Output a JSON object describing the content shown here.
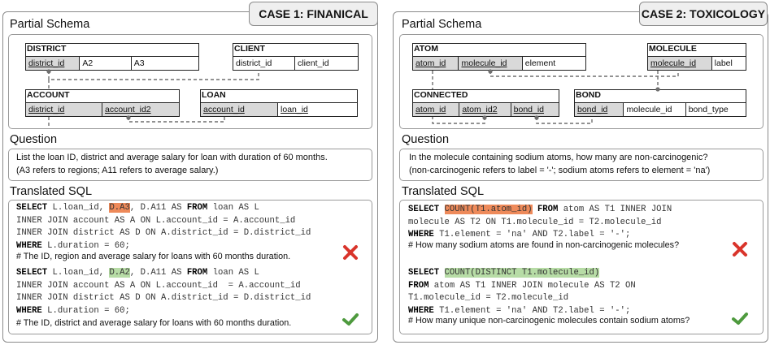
{
  "case1": {
    "tab": "CASE 1: FINANICAL",
    "schema_title": "Partial Schema",
    "tables": {
      "district": {
        "name": "DISTRICT",
        "cols": [
          "district_id",
          "A2",
          "A3"
        ]
      },
      "client": {
        "name": "CLIENT",
        "cols": [
          "district_id",
          "client_id"
        ]
      },
      "account": {
        "name": "ACCOUNT",
        "cols": [
          "district_id",
          "account_id2"
        ]
      },
      "loan": {
        "name": "LOAN",
        "cols": [
          "account_id",
          "loan_id"
        ]
      }
    },
    "question_title": "Question",
    "question_line1": "List the loan ID, district and average salary for loan with duration of 60 months.",
    "question_line2": "(A3 refers to regions; A11 refers to average salary.)",
    "sql_title": "Translated SQL",
    "sql_wrong": {
      "l1_kw": "SELECT",
      "l1_a": " L.loan_id, ",
      "l1_hl": "D.A3",
      "l1_b": ", D.A11 AS ",
      "l1_kw2": "FROM",
      "l1_c": " loan AS L",
      "l2": "INNER JOIN account AS A ON L.account_id = A.account_id",
      "l3": "INNER JOIN district AS D ON A.district_id = D.district_id",
      "l4_kw": "WHERE",
      "l4": " L.duration = 60;",
      "comment": "# The ID, region and average salary for loans with 60 months duration."
    },
    "sql_right": {
      "l1_kw": "SELECT",
      "l1_a": " L.loan_id, ",
      "l1_hl": "D.A2",
      "l1_b": ", D.A11 AS ",
      "l1_kw2": "FROM",
      "l1_c": " loan AS L",
      "l2": "INNER JOIN account AS A ON L.account_id  = A.account_id",
      "l3": "INNER JOIN district AS D ON A.district_id = D.district_id",
      "l4_kw": "WHERE",
      "l4": " L.duration = 60;",
      "comment": "# The ID, district and average salary for loans with 60 months duration."
    }
  },
  "case2": {
    "tab": "CASE 2: TOXICOLOGY",
    "schema_title": "Partial Schema",
    "tables": {
      "atom": {
        "name": "ATOM",
        "cols": [
          "atom_id",
          "molecule_id",
          "element"
        ]
      },
      "molecule": {
        "name": "MOLECULE",
        "cols": [
          "molecule_id",
          "label"
        ]
      },
      "connected": {
        "name": "CONNECTED",
        "cols": [
          "atom_id",
          "atom_id2",
          "bond_id"
        ]
      },
      "bond": {
        "name": "BOND",
        "cols": [
          "bond_id",
          "molecule_id",
          "bond_type"
        ]
      }
    },
    "question_title": "Question",
    "question_line1": "In the molecule containing sodium atoms, how many are non-carcinogenic?",
    "question_line2": "(non-carcinogenic refers to label = '-'; sodium atoms refers to element = 'na')",
    "sql_title": "Translated SQL",
    "sql_wrong": {
      "l1_kw": "SELECT",
      "l1_hl": "COUNT(T1.atom_id)",
      "l1_kw2": "FROM",
      "l1_c": " atom AS T1 INNER JOIN",
      "l2": "molecule AS T2 ON T1.molecule_id = T2.molecule_id",
      "l3_kw": "WHERE",
      "l3": " T1.element = 'na' AND T2.label = '-';",
      "comment": "# How many sodium atoms are found in non-carcinogenic molecules?"
    },
    "sql_right": {
      "l1_kw": "SELECT",
      "l1_hl": "COUNT(DISTINCT T1.molecule_id)",
      "l2_kw": "FROM",
      "l2": " atom AS T1 INNER JOIN molecule AS T2 ON",
      "l3": "T1.molecule_id = T2.molecule_id",
      "l4_kw": "WHERE",
      "l4": " T1.element = 'na' AND T2.label = '-';",
      "comment": "# How many unique non-carcinogenic molecules contain sodium atoms?"
    }
  },
  "colors": {
    "wrong_highlight": "#ee8a5a",
    "right_highlight": "#b7dca6",
    "cross": "#d9342b",
    "check": "#4e9a3e",
    "key_cell": "#d9d9d9"
  },
  "icons": {
    "wrong": "cross-icon",
    "right": "check-icon"
  }
}
